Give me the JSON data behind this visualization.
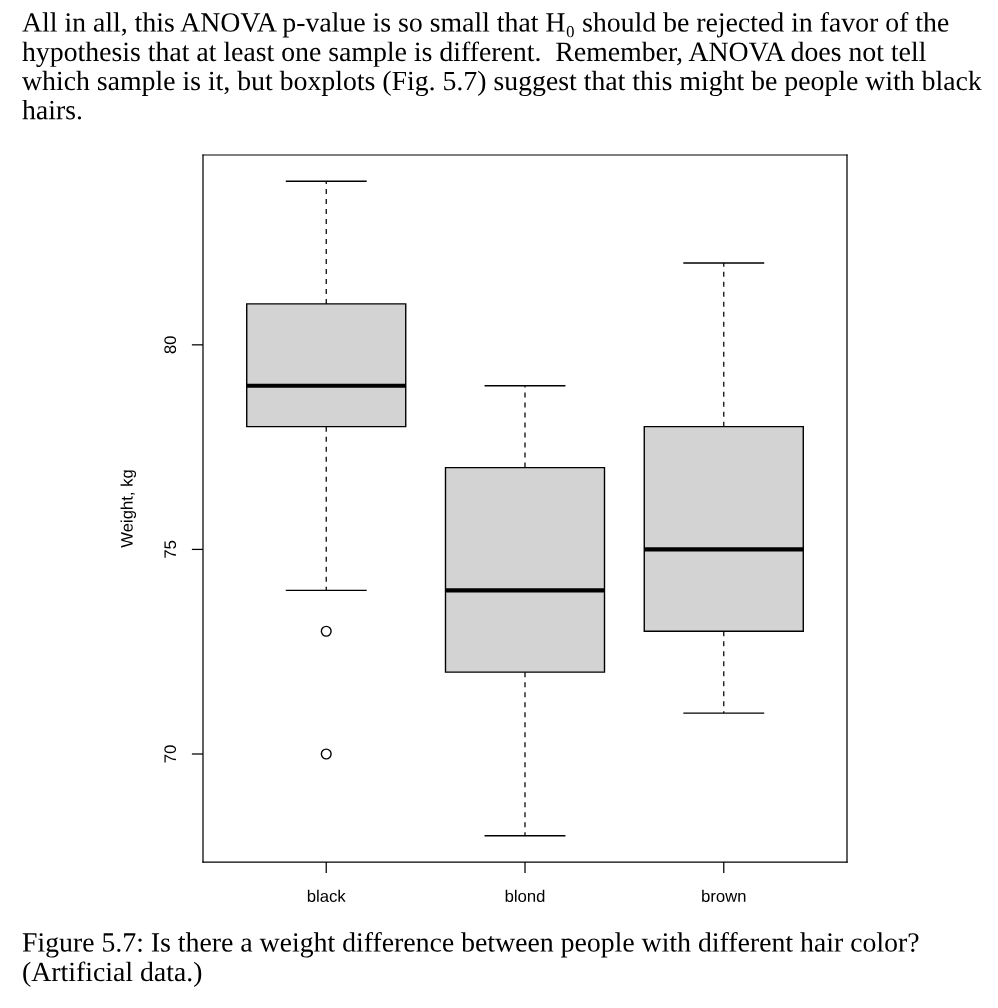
{
  "chart_data": {
    "type": "box",
    "categories": [
      "black",
      "blond",
      "brown"
    ],
    "ylabel": "Weight, kg",
    "ylim": [
      67.36,
      84.64
    ],
    "yticks": [
      70,
      75,
      80
    ],
    "color": "#d3d3d3",
    "boxes": [
      {
        "low": 74,
        "q1": 78,
        "median": 79,
        "q3": 81,
        "high": 84,
        "outliers": [
          73,
          70
        ]
      },
      {
        "low": 68,
        "q1": 72,
        "median": 74,
        "q3": 77,
        "high": 79
      },
      {
        "low": 71,
        "q1": 73,
        "median": 75,
        "q3": 78,
        "high": 82
      }
    ],
    "grid": false,
    "annotations": [
      "All in all, this ANOVA p-value is so small that H₀ should be rejected in favor of the hypothesis that at least one sample is different.  Remember, ANOVA does not tell which sample is it, but boxplots (Fig. 5.7) suggest that this might be people with black hairs.",
      "Figure 5.7: Is there a weight difference between people with different hair color? (Artificial data.)"
    ]
  }
}
